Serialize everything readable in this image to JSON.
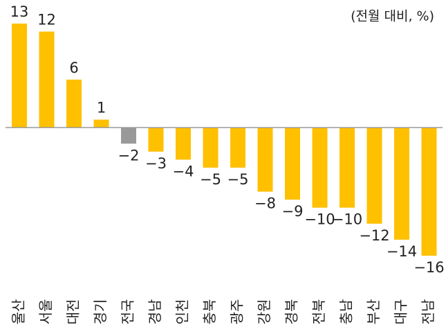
{
  "chart_data": {
    "type": "bar",
    "unit_label": "(전월 대비, %)",
    "categories": [
      "울산",
      "서울",
      "대전",
      "경기",
      "전국",
      "경남",
      "인천",
      "충북",
      "광주",
      "강원",
      "경북",
      "전북",
      "충남",
      "부산",
      "대구",
      "전남"
    ],
    "values": [
      13,
      12,
      6,
      1,
      -2,
      -3,
      -4,
      -5,
      -5,
      -8,
      -9,
      -10,
      -10,
      -12,
      -14,
      -16
    ],
    "value_labels": [
      "13",
      "12",
      "6",
      "1",
      "−2",
      "−3",
      "−4",
      "−5",
      "−5",
      "−8",
      "−9",
      "−10",
      "−10",
      "−12",
      "−14",
      "−16"
    ],
    "colors": [
      "#ffc000",
      "#ffc000",
      "#ffc000",
      "#ffc000",
      "#999999",
      "#ffc000",
      "#ffc000",
      "#ffc000",
      "#ffc000",
      "#ffc000",
      "#ffc000",
      "#ffc000",
      "#ffc000",
      "#ffc000",
      "#ffc000",
      "#ffc000"
    ]
  }
}
